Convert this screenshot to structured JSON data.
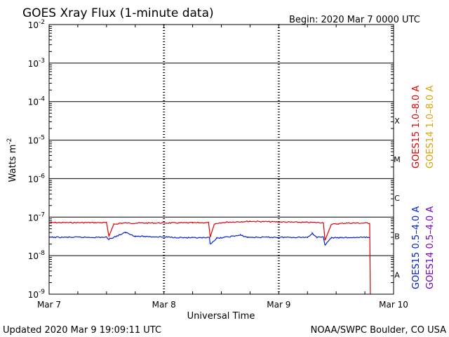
{
  "chart_data": {
    "type": "line",
    "title": "GOES Xray Flux (1-minute data)",
    "begin_label": "Begin:  2020 Mar 7 0000 UTC",
    "xlabel": "Universal Time",
    "ylabel": "Watts m",
    "ylabel_sup": "-2",
    "y_scale": "log",
    "ylim": [
      1e-09,
      0.01
    ],
    "xlim": [
      "2020-03-07 00:00",
      "2020-03-10 00:00"
    ],
    "x_ticks": [
      "Mar 7",
      "Mar 8",
      "Mar 9",
      "Mar 10"
    ],
    "y_ticks": [
      {
        "base": "10",
        "exp": "-2"
      },
      {
        "base": "10",
        "exp": "-3"
      },
      {
        "base": "10",
        "exp": "-4"
      },
      {
        "base": "10",
        "exp": "-5"
      },
      {
        "base": "10",
        "exp": "-6"
      },
      {
        "base": "10",
        "exp": "-7"
      },
      {
        "base": "10",
        "exp": "-8"
      },
      {
        "base": "10",
        "exp": "-9"
      }
    ],
    "flare_classes": [
      "X",
      "M",
      "C",
      "B",
      "A"
    ],
    "grid": true,
    "legend": [
      {
        "text": "GOES15 1.0–8.0 A",
        "color": "#e00000"
      },
      {
        "text": "GOES14 1.0–8.0 A",
        "color": "#e0a000"
      },
      {
        "text": "GOES15 0.5–4.0 A",
        "color": "#0020d0"
      },
      {
        "text": "GOES14 0.5–4.0 A",
        "color": "#7000c0"
      }
    ],
    "series": [
      {
        "name": "GOES15 1.0–8.0 A",
        "color": "#e00000",
        "points": [
          [
            "2020-03-07 00:00",
            7.2e-08
          ],
          [
            "2020-03-07 12:00",
            7.2e-08
          ],
          [
            "2020-03-07 12:30",
            3.2e-08
          ],
          [
            "2020-03-07 13:30",
            6.5e-08
          ],
          [
            "2020-03-07 15:00",
            7e-08
          ],
          [
            "2020-03-08 06:00",
            7.1e-08
          ],
          [
            "2020-03-08 09:20",
            7.2e-08
          ],
          [
            "2020-03-08 09:40",
            3e-08
          ],
          [
            "2020-03-08 10:30",
            6.5e-08
          ],
          [
            "2020-03-08 13:00",
            7.4e-08
          ],
          [
            "2020-03-08 18:00",
            7.8e-08
          ],
          [
            "2020-03-09 00:00",
            7.5e-08
          ],
          [
            "2020-03-09 09:20",
            7.2e-08
          ],
          [
            "2020-03-09 09:40",
            2.5e-08
          ],
          [
            "2020-03-09 11:00",
            6.5e-08
          ],
          [
            "2020-03-09 14:00",
            7e-08
          ],
          [
            "2020-03-09 19:00",
            7e-08
          ],
          [
            "2020-03-09 19:09",
            1e-09
          ]
        ]
      },
      {
        "name": "GOES15 0.5–4.0 A",
        "color": "#0020d0",
        "points": [
          [
            "2020-03-07 00:00",
            3e-08
          ],
          [
            "2020-03-07 12:00",
            3e-08
          ],
          [
            "2020-03-07 12:30",
            2.7e-08
          ],
          [
            "2020-03-07 13:30",
            3e-08
          ],
          [
            "2020-03-07 16:00",
            4e-08
          ],
          [
            "2020-03-07 18:00",
            3.2e-08
          ],
          [
            "2020-03-08 06:00",
            2.9e-08
          ],
          [
            "2020-03-08 09:30",
            2.9e-08
          ],
          [
            "2020-03-08 09:40",
            2e-08
          ],
          [
            "2020-03-08 11:00",
            2.8e-08
          ],
          [
            "2020-03-08 16:00",
            3.4e-08
          ],
          [
            "2020-03-08 17:30",
            3e-08
          ],
          [
            "2020-03-09 06:00",
            3e-08
          ],
          [
            "2020-03-09 07:00",
            3.8e-08
          ],
          [
            "2020-03-09 08:00",
            3e-08
          ],
          [
            "2020-03-09 09:20",
            3e-08
          ],
          [
            "2020-03-09 09:40",
            1.9e-08
          ],
          [
            "2020-03-09 11:00",
            2.9e-08
          ],
          [
            "2020-03-09 19:00",
            3e-08
          ]
        ]
      }
    ]
  },
  "footer": {
    "updated": "Updated 2020 Mar  9 19:09:11 UTC",
    "source": "NOAA/SWPC Boulder, CO USA"
  }
}
